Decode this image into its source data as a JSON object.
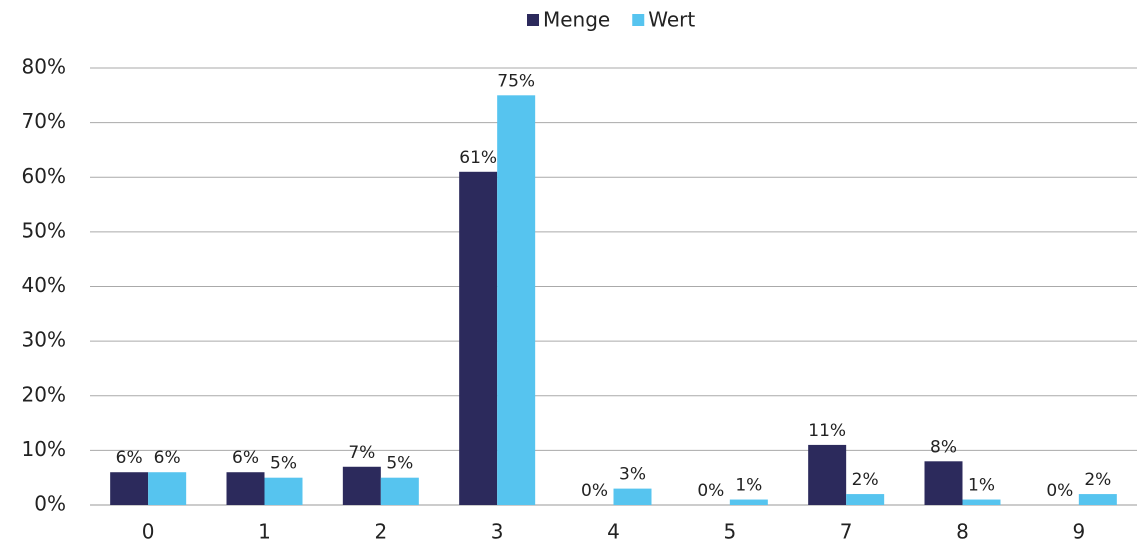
{
  "chart_data": {
    "type": "bar",
    "categories": [
      "0",
      "1",
      "2",
      "3",
      "4",
      "5",
      "7",
      "8",
      "9"
    ],
    "series": [
      {
        "name": "Menge",
        "color": "#2c2a5c",
        "values": [
          6,
          6,
          7,
          61,
          0,
          0,
          11,
          8,
          0
        ],
        "value_labels": [
          "6%",
          "6%",
          "7%",
          "61%",
          "0%",
          "0%",
          "11%",
          "8%",
          "0%"
        ]
      },
      {
        "name": "Wert",
        "color": "#56c4ef",
        "values": [
          6,
          5,
          5,
          75,
          3,
          1,
          2,
          1,
          2
        ],
        "value_labels": [
          "6%",
          "5%",
          "5%",
          "75%",
          "3%",
          "1%",
          "2%",
          "1%",
          "2%"
        ]
      }
    ],
    "ylim": [
      0,
      80
    ],
    "yticks": [
      {
        "value": 0,
        "label": "0%"
      },
      {
        "value": 10,
        "label": "10%"
      },
      {
        "value": 20,
        "label": "20%"
      },
      {
        "value": 30,
        "label": "30%"
      },
      {
        "value": 40,
        "label": "40%"
      },
      {
        "value": 50,
        "label": "50%"
      },
      {
        "value": 60,
        "label": "60%"
      },
      {
        "value": 70,
        "label": "70%"
      },
      {
        "value": 80,
        "label": "80%"
      }
    ],
    "grid": true,
    "legend": "top"
  }
}
